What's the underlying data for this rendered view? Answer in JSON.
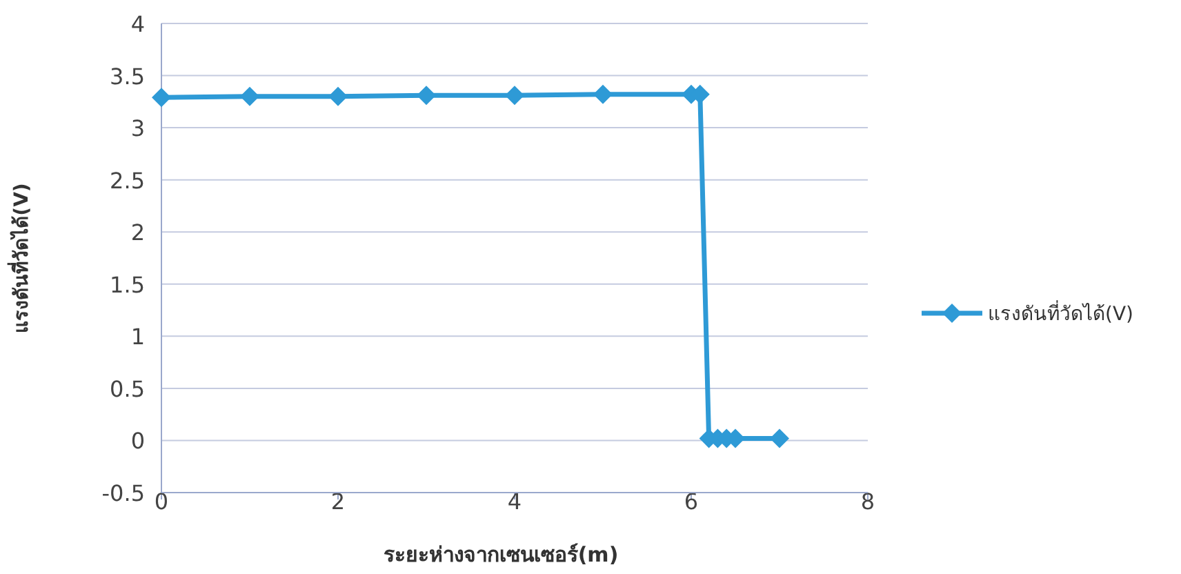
{
  "chart_data": {
    "type": "line",
    "xlabel": "ระยะห่างจากเซนเซอร์(m)",
    "ylabel": "แรงดันที่วัดได้(V)",
    "series": [
      {
        "name": "แรงดันที่วัดได้(V)",
        "color": "#2e9ad6",
        "x": [
          0,
          1,
          2,
          3,
          4,
          5,
          6,
          6.1,
          6.2,
          6.3,
          6.4,
          6.5,
          7
        ],
        "values": [
          3.29,
          3.3,
          3.3,
          3.31,
          3.31,
          3.32,
          3.32,
          3.32,
          0.02,
          0.02,
          0.02,
          0.02,
          0.02
        ]
      }
    ],
    "xlim": [
      0,
      8
    ],
    "xticks": [
      0,
      2,
      4,
      6,
      8
    ],
    "ylim": [
      -0.5,
      4
    ],
    "yticks": [
      -0.5,
      0,
      0.5,
      1,
      1.5,
      2,
      2.5,
      3,
      3.5,
      4
    ],
    "grid": "y",
    "legend": "right",
    "marker": "diamond",
    "line_style": "solid"
  }
}
